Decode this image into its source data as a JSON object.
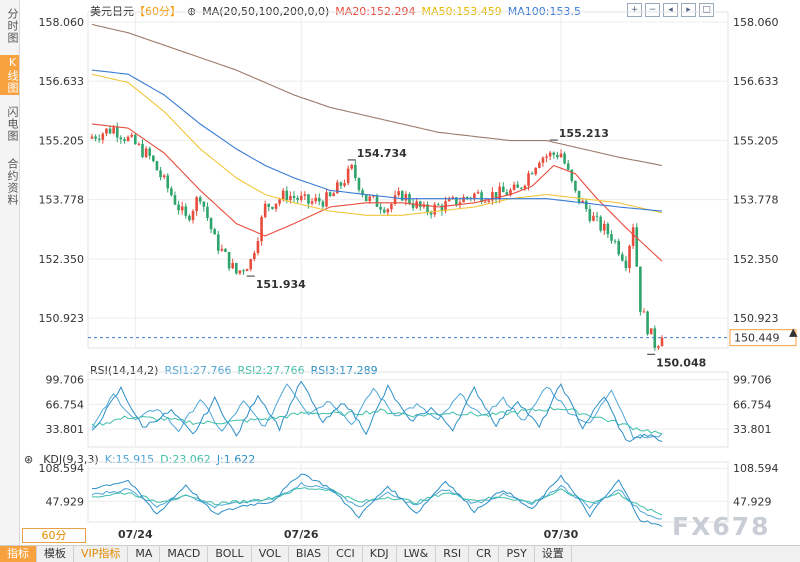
{
  "side_tabs": [
    {
      "label": "分时图",
      "active": false
    },
    {
      "label": "K线图",
      "active": true
    },
    {
      "label": "闪电图",
      "active": false
    },
    {
      "label": "合约资料",
      "active": false
    }
  ],
  "header": {
    "symbol": "美元日元",
    "period": "【60分】",
    "plus": "⊕",
    "ma_params": "MA(20,50,100,200,0,0)",
    "ma20": "MA20:152.294",
    "ma50": "MA50:153.459",
    "ma100": "MA100:153.5"
  },
  "rsi_header": {
    "params": "RSI(14,14,2)",
    "rsi1": "RSI1:27.766",
    "rsi2": "RSI2:27.766",
    "rsi3": "RSI3:17.289"
  },
  "kdj_header": {
    "params": "KDJ(9,3,3)",
    "k": "K:15.915",
    "d": "D:23.062",
    "j": "J:1.622"
  },
  "toolbar_icons": [
    "zoom-in-icon",
    "zoom-out-icon",
    "move-left-icon",
    "move-right-icon",
    "fullscreen-icon"
  ],
  "period_selector": "60分",
  "bottom_tabs": [
    {
      "label": "指标",
      "active": true
    },
    {
      "label": "模板",
      "active": false
    },
    {
      "label": "VIP指标",
      "active": false,
      "vip": true
    },
    {
      "label": "MA",
      "active": false
    },
    {
      "label": "MACD",
      "active": false
    },
    {
      "label": "BOLL",
      "active": false
    },
    {
      "label": "VOL",
      "active": false
    },
    {
      "label": "BIAS",
      "active": false
    },
    {
      "label": "CCI",
      "active": false
    },
    {
      "label": "KDJ",
      "active": false
    },
    {
      "label": "LW&",
      "active": false
    },
    {
      "label": "RSI",
      "active": false
    },
    {
      "label": "CR",
      "active": false
    },
    {
      "label": "PSY",
      "active": false
    },
    {
      "label": "设置",
      "active": false
    }
  ],
  "watermark": "FX678",
  "colors": {
    "up": "#e74c3c",
    "down": "#2ea36b",
    "ma20": "#e74c3c",
    "ma50": "#f0c63a",
    "ma100": "#3a7bd5",
    "ma200": "#9b7b6a",
    "rsi1": "#4fa6d8",
    "rsi2": "#3fbfa8",
    "rsi3": "#2c8fc6",
    "kdj_k": "#4fa6d8",
    "kdj_d": "#3fbfa8",
    "kdj_j": "#2c8fc6"
  },
  "chart_data": [
    {
      "type": "candlestick",
      "title": "美元日元 60分",
      "y_ticks": [
        158.06,
        156.633,
        155.205,
        153.778,
        152.35,
        150.923
      ],
      "ylim": [
        150.2,
        158.3
      ],
      "x_ticks": [
        "07/24",
        "07/26",
        "07/30"
      ],
      "last_price": 150.449,
      "annotations": [
        {
          "label": "154.734",
          "value": 154.734,
          "kind": "high"
        },
        {
          "label": "151.934",
          "value": 151.934,
          "kind": "low"
        },
        {
          "label": "155.213",
          "value": 155.213,
          "kind": "high"
        },
        {
          "label": "150.048",
          "value": 150.048,
          "kind": "low"
        }
      ],
      "close_anchors": [
        [
          0,
          155.3
        ],
        [
          6,
          155.5
        ],
        [
          12,
          155.1
        ],
        [
          16,
          154.8
        ],
        [
          20,
          154.2
        ],
        [
          26,
          153.3
        ],
        [
          30,
          153.9
        ],
        [
          34,
          152.8
        ],
        [
          40,
          152.0
        ],
        [
          44,
          152.3
        ],
        [
          48,
          153.6
        ],
        [
          54,
          153.9
        ],
        [
          60,
          153.7
        ],
        [
          66,
          153.8
        ],
        [
          72,
          154.5
        ],
        [
          76,
          153.8
        ],
        [
          82,
          153.6
        ],
        [
          86,
          153.9
        ],
        [
          92,
          153.5
        ],
        [
          96,
          153.6
        ],
        [
          100,
          153.7
        ],
        [
          106,
          153.9
        ],
        [
          112,
          153.9
        ],
        [
          118,
          154.0
        ],
        [
          124,
          154.8
        ],
        [
          130,
          154.9
        ],
        [
          134,
          153.9
        ],
        [
          140,
          153.2
        ],
        [
          144,
          152.9
        ],
        [
          148,
          152.3
        ],
        [
          150,
          153.2
        ],
        [
          152,
          151.2
        ],
        [
          154,
          150.7
        ],
        [
          156,
          150.3
        ],
        [
          158,
          150.449
        ]
      ],
      "series": [
        {
          "name": "MA20",
          "anchors": [
            [
              0,
              155.6
            ],
            [
              10,
              155.5
            ],
            [
              20,
              154.9
            ],
            [
              30,
              154.0
            ],
            [
              40,
              153.2
            ],
            [
              48,
              152.9
            ],
            [
              56,
              153.2
            ],
            [
              66,
              153.6
            ],
            [
              76,
              153.7
            ],
            [
              86,
              153.7
            ],
            [
              96,
              153.6
            ],
            [
              106,
              153.7
            ],
            [
              116,
              153.9
            ],
            [
              122,
              154.1
            ],
            [
              128,
              154.6
            ],
            [
              134,
              154.4
            ],
            [
              140,
              153.8
            ],
            [
              148,
              153.1
            ],
            [
              158,
              152.294
            ]
          ]
        },
        {
          "name": "MA50",
          "anchors": [
            [
              0,
              156.8
            ],
            [
              10,
              156.6
            ],
            [
              20,
              155.9
            ],
            [
              30,
              155.0
            ],
            [
              40,
              154.3
            ],
            [
              48,
              153.9
            ],
            [
              56,
              153.7
            ],
            [
              66,
              153.5
            ],
            [
              76,
              153.4
            ],
            [
              86,
              153.4
            ],
            [
              96,
              153.5
            ],
            [
              106,
              153.6
            ],
            [
              116,
              153.8
            ],
            [
              126,
              153.9
            ],
            [
              136,
              153.8
            ],
            [
              146,
              153.7
            ],
            [
              158,
              153.459
            ]
          ]
        },
        {
          "name": "MA100",
          "anchors": [
            [
              0,
              156.9
            ],
            [
              10,
              156.8
            ],
            [
              20,
              156.3
            ],
            [
              30,
              155.6
            ],
            [
              40,
              155.0
            ],
            [
              48,
              154.6
            ],
            [
              56,
              154.3
            ],
            [
              66,
              154.0
            ],
            [
              76,
              153.9
            ],
            [
              86,
              153.8
            ],
            [
              96,
              153.8
            ],
            [
              106,
              153.8
            ],
            [
              116,
              153.8
            ],
            [
              126,
              153.8
            ],
            [
              136,
              153.7
            ],
            [
              146,
              153.6
            ],
            [
              158,
              153.5
            ]
          ]
        },
        {
          "name": "MA200",
          "anchors": [
            [
              0,
              158.0
            ],
            [
              10,
              157.8
            ],
            [
              20,
              157.5
            ],
            [
              30,
              157.2
            ],
            [
              40,
              156.9
            ],
            [
              48,
              156.6
            ],
            [
              56,
              156.3
            ],
            [
              66,
              156.0
            ],
            [
              76,
              155.8
            ],
            [
              86,
              155.6
            ],
            [
              96,
              155.4
            ],
            [
              106,
              155.3
            ],
            [
              116,
              155.2
            ],
            [
              126,
              155.2
            ],
            [
              136,
              155.0
            ],
            [
              146,
              154.8
            ],
            [
              158,
              154.6
            ]
          ]
        }
      ]
    },
    {
      "type": "line",
      "title": "RSI(14,14,2)",
      "y_ticks": [
        99.706,
        66.754,
        33.801
      ],
      "ylim": [
        10,
        110
      ],
      "series": [
        {
          "name": "RSI1",
          "anchors": [
            [
              0,
              35
            ],
            [
              6,
              80
            ],
            [
              12,
              45
            ],
            [
              18,
              62
            ],
            [
              24,
              32
            ],
            [
              30,
              74
            ],
            [
              36,
              30
            ],
            [
              42,
              70
            ],
            [
              48,
              36
            ],
            [
              54,
              96
            ],
            [
              60,
              55
            ],
            [
              66,
              72
            ],
            [
              72,
              40
            ],
            [
              78,
              88
            ],
            [
              84,
              52
            ],
            [
              90,
              66
            ],
            [
              96,
              45
            ],
            [
              102,
              80
            ],
            [
              108,
              50
            ],
            [
              114,
              74
            ],
            [
              120,
              44
            ],
            [
              126,
              92
            ],
            [
              132,
              58
            ],
            [
              138,
              40
            ],
            [
              144,
              88
            ],
            [
              150,
              25
            ],
            [
              156,
              22
            ],
            [
              158,
              27.766
            ]
          ]
        },
        {
          "name": "RSI2",
          "anchors": [
            [
              0,
              38
            ],
            [
              10,
              50
            ],
            [
              20,
              47
            ],
            [
              30,
              42
            ],
            [
              40,
              44
            ],
            [
              50,
              48
            ],
            [
              60,
              56
            ],
            [
              70,
              54
            ],
            [
              80,
              58
            ],
            [
              90,
              52
            ],
            [
              100,
              56
            ],
            [
              110,
              52
            ],
            [
              120,
              58
            ],
            [
              130,
              62
            ],
            [
              140,
              50
            ],
            [
              150,
              36
            ],
            [
              158,
              27.766
            ]
          ]
        },
        {
          "name": "RSI3",
          "anchors": [
            [
              0,
              30
            ],
            [
              8,
              88
            ],
            [
              14,
              36
            ],
            [
              22,
              58
            ],
            [
              28,
              26
            ],
            [
              34,
              74
            ],
            [
              40,
              24
            ],
            [
              46,
              80
            ],
            [
              52,
              35
            ],
            [
              58,
              98
            ],
            [
              64,
              42
            ],
            [
              70,
              70
            ],
            [
              76,
              30
            ],
            [
              82,
              90
            ],
            [
              88,
              44
            ],
            [
              94,
              62
            ],
            [
              100,
              34
            ],
            [
              106,
              88
            ],
            [
              112,
              40
            ],
            [
              118,
              72
            ],
            [
              124,
              36
            ],
            [
              130,
              94
            ],
            [
              136,
              36
            ],
            [
              142,
              78
            ],
            [
              148,
              18
            ],
            [
              154,
              26
            ],
            [
              158,
              17.289
            ]
          ]
        }
      ]
    },
    {
      "type": "line",
      "title": "KDJ(9,3,3)",
      "y_ticks": [
        108.594,
        47.929
      ],
      "ylim": [
        10,
        120
      ],
      "series": [
        {
          "name": "K",
          "anchors": [
            [
              0,
              60
            ],
            [
              10,
              70
            ],
            [
              18,
              40
            ],
            [
              26,
              62
            ],
            [
              34,
              38
            ],
            [
              42,
              46
            ],
            [
              50,
              52
            ],
            [
              58,
              80
            ],
            [
              66,
              70
            ],
            [
              74,
              38
            ],
            [
              82,
              62
            ],
            [
              90,
              40
            ],
            [
              98,
              70
            ],
            [
              106,
              44
            ],
            [
              114,
              60
            ],
            [
              122,
              42
            ],
            [
              130,
              76
            ],
            [
              138,
              38
            ],
            [
              146,
              70
            ],
            [
              152,
              30
            ],
            [
              158,
              15.915
            ]
          ]
        },
        {
          "name": "D",
          "anchors": [
            [
              0,
              56
            ],
            [
              10,
              64
            ],
            [
              18,
              48
            ],
            [
              26,
              56
            ],
            [
              34,
              44
            ],
            [
              42,
              48
            ],
            [
              50,
              54
            ],
            [
              58,
              72
            ],
            [
              66,
              70
            ],
            [
              74,
              46
            ],
            [
              82,
              56
            ],
            [
              90,
              46
            ],
            [
              98,
              64
            ],
            [
              106,
              50
            ],
            [
              114,
              56
            ],
            [
              122,
              46
            ],
            [
              130,
              68
            ],
            [
              138,
              46
            ],
            [
              146,
              62
            ],
            [
              152,
              38
            ],
            [
              158,
              23.062
            ]
          ]
        },
        {
          "name": "J",
          "anchors": [
            [
              0,
              72
            ],
            [
              10,
              86
            ],
            [
              18,
              24
            ],
            [
              26,
              78
            ],
            [
              34,
              24
            ],
            [
              42,
              40
            ],
            [
              50,
              48
            ],
            [
              58,
              100
            ],
            [
              66,
              72
            ],
            [
              74,
              20
            ],
            [
              82,
              76
            ],
            [
              90,
              26
            ],
            [
              98,
              86
            ],
            [
              106,
              30
            ],
            [
              114,
              70
            ],
            [
              122,
              32
            ],
            [
              130,
              96
            ],
            [
              138,
              22
            ],
            [
              146,
              86
            ],
            [
              152,
              14
            ],
            [
              158,
              1.622
            ]
          ]
        }
      ]
    }
  ]
}
